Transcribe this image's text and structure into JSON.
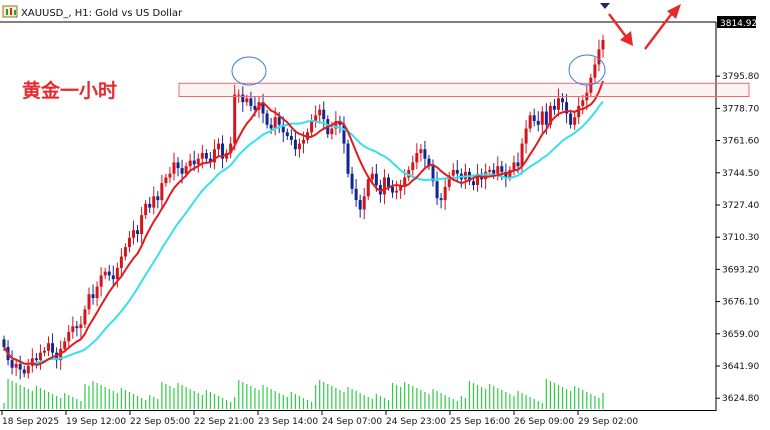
{
  "window": {
    "symbol_title": "XAUUSD_, H1:  Gold vs US Dollar"
  },
  "annotation": {
    "text": "黄金一小时",
    "color": "#e8282b"
  },
  "price_tag": {
    "value": "3814.92"
  },
  "colors": {
    "bull": "#d4141c",
    "bear": "#13258f",
    "ma_fast": "#e11c1c",
    "ma_slow": "#36e0ee",
    "volume": "#2ecc40",
    "zone": "#f06b6b",
    "circle": "#3a7bd5",
    "arrow": "#e8282b"
  },
  "chart_data": {
    "type": "candlestick",
    "title": "XAUUSD_, H1:  Gold vs US Dollar",
    "ylim": [
      3618,
      3832
    ],
    "y_ticks": [
      "3814.92",
      "3795.80",
      "3778.70",
      "3761.60",
      "3744.50",
      "3727.40",
      "3710.30",
      "3693.20",
      "3676.10",
      "3659.00",
      "3641.90",
      "3624.80"
    ],
    "x_ticks": [
      "18 Sep 2025",
      "19 Sep 12:00",
      "22 Sep 05:00",
      "22 Sep 21:00",
      "23 Sep 14:00",
      "24 Sep 07:00",
      "24 Sep 23:00",
      "25 Sep 16:00",
      "26 Sep 09:00",
      "29 Sep 02:00"
    ],
    "resistance_zone": [
      3785,
      3792
    ],
    "last_price": 3814.92,
    "moving_averages": [
      "ma_fast",
      "ma_slow"
    ],
    "close": [
      3652,
      3645,
      3641,
      3643,
      3640,
      3638,
      3642,
      3646,
      3645,
      3649,
      3650,
      3654,
      3649,
      3645,
      3651,
      3655,
      3660,
      3663,
      3662,
      3664,
      3672,
      3680,
      3678,
      3684,
      3690,
      3692,
      3690,
      3688,
      3694,
      3700,
      3705,
      3710,
      3714,
      3712,
      3722,
      3728,
      3726,
      3732,
      3730,
      3739,
      3742,
      3744,
      3750,
      3747,
      3744,
      3748,
      3751,
      3749,
      3752,
      3755,
      3752,
      3750,
      3757,
      3760,
      3752,
      3755,
      3760,
      3786,
      3786,
      3782,
      3784,
      3780,
      3778,
      3782,
      3776,
      3770,
      3768,
      3774,
      3770,
      3766,
      3764,
      3762,
      3757,
      3760,
      3762,
      3766,
      3772,
      3775,
      3778,
      3773,
      3765,
      3768,
      3772,
      3770,
      3760,
      3744,
      3736,
      3730,
      3725,
      3732,
      3741,
      3744,
      3738,
      3733,
      3742,
      3737,
      3734,
      3735,
      3738,
      3742,
      3746,
      3750,
      3755,
      3757,
      3752,
      3748,
      3740,
      3731,
      3730,
      3737,
      3743,
      3746,
      3744,
      3741,
      3745,
      3740,
      3738,
      3744,
      3741,
      3745,
      3746,
      3744,
      3748,
      3745,
      3742,
      3746,
      3750,
      3748,
      3760,
      3768,
      3775,
      3772,
      3770,
      3777,
      3770,
      3780,
      3778,
      3784,
      3782,
      3776,
      3770,
      3774,
      3780,
      3783,
      3787,
      3795,
      3802,
      3810,
      3815
    ]
  }
}
